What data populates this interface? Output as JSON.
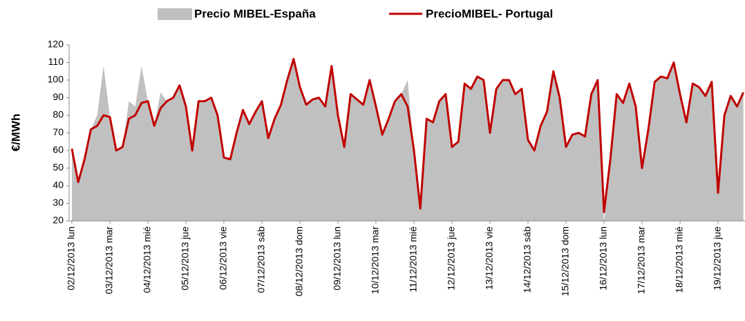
{
  "chart_data": {
    "type": "area-line",
    "y_label": "€/MWh",
    "legend": "top",
    "grid": false,
    "ylim": [
      20,
      120
    ],
    "yticks": [
      20,
      30,
      40,
      50,
      60,
      70,
      80,
      90,
      100,
      110,
      120
    ],
    "categories": [
      "02/12/2013 lun",
      null,
      null,
      null,
      null,
      null,
      "03/12/2013 mar",
      null,
      null,
      null,
      null,
      null,
      "04/12/2013 mié",
      null,
      null,
      null,
      null,
      null,
      "05/12/2013 jue",
      null,
      null,
      null,
      null,
      null,
      "06/12/2013 vie",
      null,
      null,
      null,
      null,
      null,
      "07/12/2013 sáb",
      null,
      null,
      null,
      null,
      null,
      "08/12/2013 dom",
      null,
      null,
      null,
      null,
      null,
      "09/12/2013 lun",
      null,
      null,
      null,
      null,
      null,
      "10/12/2013 mar",
      null,
      null,
      null,
      null,
      null,
      "11/12/2013 mié",
      null,
      null,
      null,
      null,
      null,
      "12/12/2013 jue",
      null,
      null,
      null,
      null,
      null,
      "13/12/2013 vie",
      null,
      null,
      null,
      null,
      null,
      "14/12/2013 sáb",
      null,
      null,
      null,
      null,
      null,
      "15/12/2013 dom",
      null,
      null,
      null,
      null,
      null,
      "16/12/2013 lun",
      null,
      null,
      null,
      null,
      null,
      "17/12/2013 mar",
      null,
      null,
      null,
      null,
      null,
      "18/12/2013 mié",
      null,
      null,
      null,
      null,
      null,
      "19/12/2013 jue",
      null,
      null,
      null,
      null
    ],
    "series": [
      {
        "name": "Precio MIBEL-España",
        "kind": "area",
        "color": "#c0c0c0",
        "values": [
          61,
          42,
          55,
          72,
          80,
          108,
          79,
          60,
          62,
          88,
          85,
          108,
          88,
          74,
          93,
          88,
          90,
          97,
          85,
          60,
          88,
          88,
          90,
          80,
          56,
          55,
          70,
          83,
          75,
          82,
          88,
          67,
          78,
          86,
          100,
          112,
          96,
          86,
          89,
          90,
          85,
          108,
          80,
          62,
          92,
          89,
          86,
          100,
          85,
          69,
          78,
          88,
          92,
          100,
          60,
          27,
          78,
          76,
          88,
          92,
          62,
          65,
          98,
          95,
          102,
          100,
          70,
          95,
          100,
          100,
          92,
          95,
          66,
          60,
          74,
          82,
          105,
          90,
          62,
          69,
          70,
          68,
          92,
          100,
          20,
          55,
          92,
          87,
          98,
          85,
          50,
          72,
          99,
          102,
          101,
          110,
          92,
          76,
          98,
          96,
          91,
          99,
          36,
          80,
          91,
          85,
          93
        ]
      },
      {
        "name": "PrecioMIBEL- Portugal",
        "kind": "line",
        "color": "#c00000",
        "values": [
          61,
          42,
          55,
          72,
          74,
          80,
          79,
          60,
          62,
          78,
          80,
          87,
          88,
          74,
          84,
          88,
          90,
          97,
          85,
          60,
          88,
          88,
          90,
          80,
          56,
          55,
          70,
          83,
          75,
          82,
          88,
          67,
          78,
          86,
          100,
          112,
          96,
          86,
          89,
          90,
          85,
          108,
          80,
          62,
          92,
          89,
          86,
          100,
          85,
          69,
          78,
          88,
          92,
          85,
          60,
          27,
          78,
          76,
          88,
          92,
          62,
          65,
          98,
          95,
          102,
          100,
          70,
          95,
          100,
          100,
          92,
          95,
          66,
          60,
          74,
          82,
          105,
          90,
          62,
          69,
          70,
          68,
          92,
          100,
          25,
          55,
          92,
          87,
          98,
          85,
          50,
          72,
          99,
          102,
          101,
          110,
          92,
          76,
          98,
          96,
          91,
          99,
          36,
          80,
          91,
          85,
          93
        ]
      }
    ]
  }
}
